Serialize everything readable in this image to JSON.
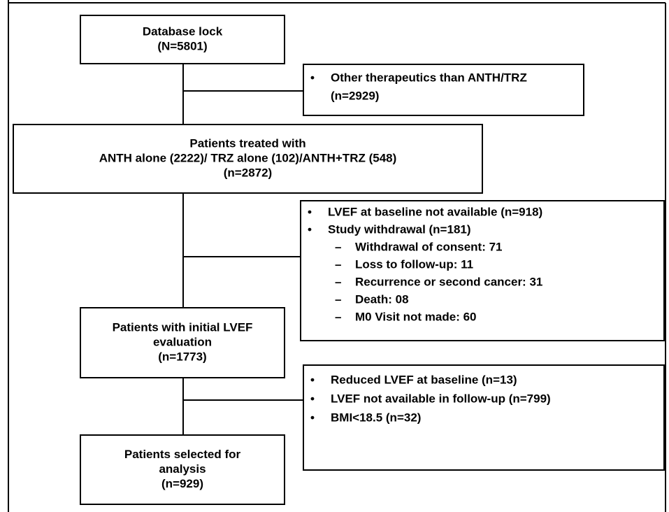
{
  "nodes": [
    {
      "lines": [
        "Database lock",
        "(N=5801)"
      ]
    },
    {
      "lines": [
        "Patients treated with",
        "ANTH alone (2222)/ TRZ alone (102)/ANTH+TRZ (548)",
        "(n=2872)"
      ]
    },
    {
      "lines": [
        "Patients with initial LVEF",
        "evaluation",
        "(n=1773)"
      ]
    },
    {
      "lines": [
        "Patients selected for",
        "analysis",
        "(n=929)"
      ]
    }
  ],
  "exclusions": [
    {
      "items": [
        {
          "marker": "•",
          "lines": [
            "Other therapeutics than ANTH/TRZ",
            "(n=2929)"
          ]
        }
      ]
    },
    {
      "items": [
        {
          "marker": "•",
          "lines": [
            "LVEF at baseline not available (n=918)"
          ]
        },
        {
          "marker": "•",
          "lines": [
            "Study withdrawal (n=181)"
          ],
          "items": [
            {
              "marker": "–",
              "lines": [
                "Withdrawal of consent: 71"
              ]
            },
            {
              "marker": "–",
              "lines": [
                "Loss to follow-up: 11"
              ]
            },
            {
              "marker": "–",
              "lines": [
                "Recurrence or second cancer: 31"
              ]
            },
            {
              "marker": "–",
              "lines": [
                "Death: 08"
              ]
            },
            {
              "marker": "–",
              "lines": [
                "M0 Visit not made: 60"
              ]
            }
          ]
        }
      ]
    },
    {
      "items": [
        {
          "marker": "•",
          "lines": [
            "Reduced LVEF at baseline (n=13)"
          ]
        },
        {
          "marker": "•",
          "lines": [
            "LVEF not available in follow-up (n=799)"
          ]
        },
        {
          "marker": "•",
          "lines": [
            "BMI<18.5 (n=32)"
          ]
        }
      ]
    }
  ]
}
